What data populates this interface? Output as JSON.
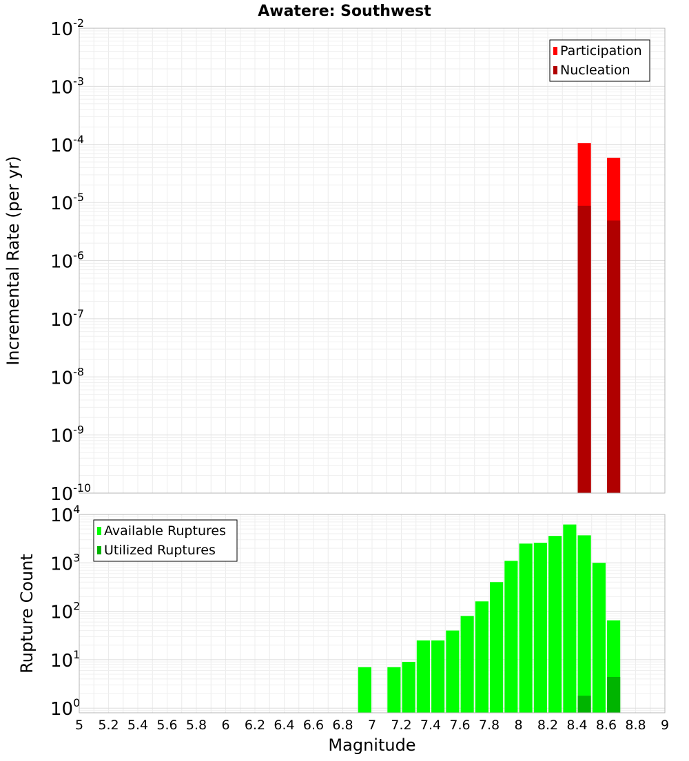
{
  "chart_data": [
    {
      "type": "bar",
      "title": "Awatere: Southwest",
      "xlabel": "",
      "ylabel": "Incremental Rate (per yr)",
      "xlim": [
        5,
        9
      ],
      "ylim": [
        1e-10,
        0.01
      ],
      "yscale": "log",
      "y_ticks": [
        {
          "base": "10",
          "exp": "-2"
        },
        {
          "base": "10",
          "exp": "-3"
        },
        {
          "base": "10",
          "exp": "-4"
        },
        {
          "base": "10",
          "exp": "-5"
        },
        {
          "base": "10",
          "exp": "-6"
        },
        {
          "base": "10",
          "exp": "-7"
        },
        {
          "base": "10",
          "exp": "-8"
        },
        {
          "base": "10",
          "exp": "-9"
        },
        {
          "base": "10",
          "exp": "-10"
        }
      ],
      "grid": true,
      "legend_position": "top-right",
      "series": [
        {
          "name": "Participation",
          "color": "#ff0000",
          "x": [
            8.45,
            8.65
          ],
          "values": [
            0.000105,
            5.9e-05
          ]
        },
        {
          "name": "Nucleation",
          "color": "#b00000",
          "x": [
            8.45,
            8.65
          ],
          "values": [
            8.8e-06,
            4.9e-06
          ]
        }
      ]
    },
    {
      "type": "bar",
      "title": "",
      "xlabel": "Magnitude",
      "ylabel": "Rupture Count",
      "xlim": [
        5,
        9
      ],
      "ylim": [
        0.8,
        10000
      ],
      "yscale": "log",
      "y_ticks": [
        {
          "base": "10",
          "exp": "4"
        },
        {
          "base": "10",
          "exp": "3"
        },
        {
          "base": "10",
          "exp": "2"
        },
        {
          "base": "10",
          "exp": "1"
        },
        {
          "base": "10",
          "exp": "0"
        }
      ],
      "x_ticks": [
        "5",
        "5.2",
        "5.4",
        "5.6",
        "5.8",
        "6",
        "6.2",
        "6.4",
        "6.6",
        "6.8",
        "7",
        "7.2",
        "7.4",
        "7.6",
        "7.8",
        "8",
        "8.2",
        "8.4",
        "8.6",
        "8.8",
        "9"
      ],
      "grid": true,
      "legend_position": "top-left",
      "series": [
        {
          "name": "Available Ruptures",
          "color": "#00ff00",
          "x": [
            6.95,
            7.15,
            7.25,
            7.35,
            7.45,
            7.55,
            7.65,
            7.75,
            7.85,
            7.95,
            8.05,
            8.15,
            8.25,
            8.35,
            8.45,
            8.55,
            8.65
          ],
          "values": [
            7,
            7,
            9,
            25,
            25,
            40,
            80,
            160,
            400,
            1100,
            2500,
            2600,
            3600,
            6200,
            3700,
            1000,
            65
          ]
        },
        {
          "name": "Utilized Ruptures",
          "color": "#00b400",
          "x": [
            8.45,
            8.65
          ],
          "values": [
            1.8,
            4.4
          ]
        }
      ]
    }
  ]
}
